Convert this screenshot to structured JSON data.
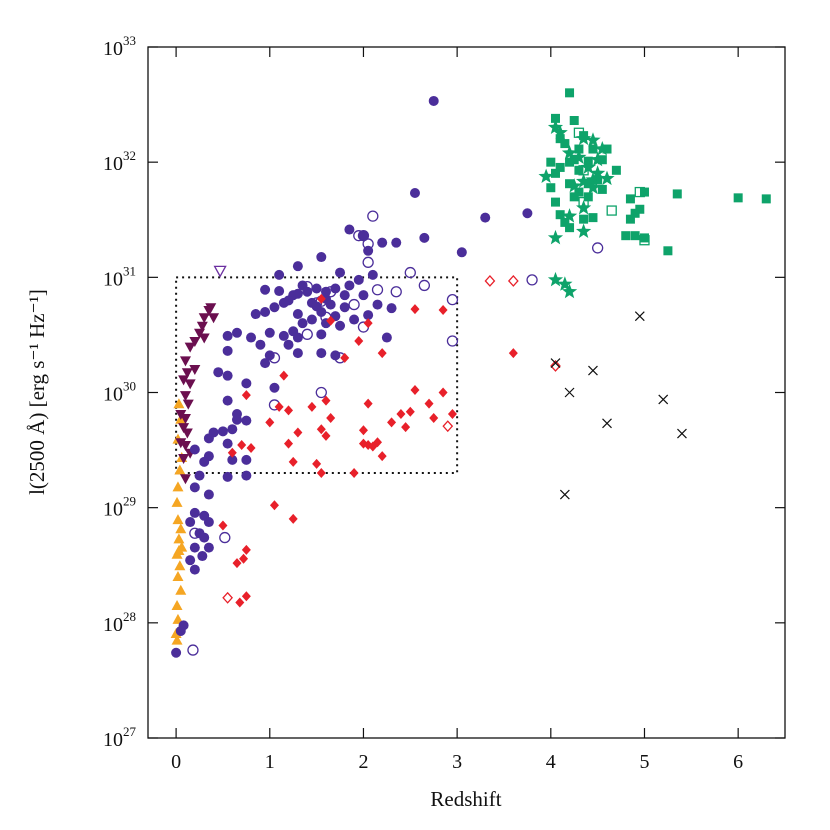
{
  "chart_data": {
    "type": "scatter",
    "xlabel": "Redshift",
    "ylabel": "l(2500 Å) [erg s⁻¹ Hz⁻¹]",
    "xlim": [
      -0.3,
      6.5
    ],
    "xticks": [
      0,
      1,
      2,
      3,
      4,
      5,
      6
    ],
    "ylim": [
      1e+27,
      1e+33
    ],
    "log_y": true,
    "yticks": [
      {
        "value": 1e+27,
        "label": "10",
        "sup": "27"
      },
      {
        "value": 1e+28,
        "label": "10",
        "sup": "28"
      },
      {
        "value": 1e+29,
        "label": "10",
        "sup": "29"
      },
      {
        "value": 1e+30,
        "label": "10",
        "sup": "30"
      },
      {
        "value": 1e+31,
        "label": "10",
        "sup": "31"
      },
      {
        "value": 1e+32,
        "label": "10",
        "sup": "32"
      },
      {
        "value": 1e+33,
        "label": "10",
        "sup": "33"
      }
    ],
    "box": {
      "x": [
        0,
        3
      ],
      "y": [
        2e+29,
        1e+31
      ]
    },
    "series": [
      {
        "marker": "triangle-up",
        "color": "#f5a623",
        "x": [
          0.03,
          0.05,
          0.02,
          0.06,
          0.04,
          0.02,
          0.01,
          0.02,
          0.05,
          0.03,
          0.06,
          0.01,
          0.04,
          0.02,
          0.05,
          0.01,
          0.02,
          0.0,
          0.01,
          0.03
        ],
        "values": [
          7.9e+29,
          5.8e+29,
          3.9e+29,
          2.7e+29,
          2.1e+29,
          1.5e+29,
          1.1e+29,
          7.8e+28,
          6.5e+28,
          5.3e+28,
          4.5e+28,
          3.9e+28,
          3.1e+28,
          2.5e+28,
          1.9e+28,
          1.4e+28,
          1.06e+28,
          8e+27,
          7e+27,
          4.2e+28
        ]
      },
      {
        "marker": "triangle-down",
        "color": "#6b0f4f",
        "x": [
          0.37,
          0.35,
          0.4,
          0.3,
          0.28,
          0.25,
          0.2,
          0.3,
          0.15,
          0.1,
          0.12,
          0.2,
          0.08,
          0.15,
          0.1,
          0.13,
          0.05,
          0.1,
          0.08,
          0.12,
          0.05,
          0.1,
          0.08,
          0.1,
          0.15
        ],
        "values": [
          5.5e+30,
          5.2e+30,
          4.5e+30,
          4.5e+30,
          3.8e+30,
          3.3e+30,
          2.8e+30,
          3e+30,
          2.5e+30,
          1.9e+30,
          1.5e+30,
          1.6e+30,
          1.3e+30,
          1.2e+30,
          9.5e+29,
          8e+29,
          6.5e+29,
          6e+29,
          5e+29,
          4.5e+29,
          3.7e+29,
          3.5e+29,
          2.7e+29,
          1.8e+29,
          3e+29
        ]
      },
      {
        "marker": "triangle-down-open",
        "color": "#6b2fa0",
        "x": [
          0.47
        ],
        "values": [
          1.15e+31
        ]
      },
      {
        "marker": "circle",
        "color": "#4b2e9a",
        "x": [
          2.75,
          2.55,
          3.3,
          3.75,
          3.05,
          2.65,
          2.35,
          1.85,
          2.0,
          2.2,
          2.05,
          1.55,
          1.3,
          1.1,
          1.75,
          2.1,
          1.95,
          1.85,
          1.7,
          1.35,
          1.5,
          1.25,
          1.6,
          1.4,
          0.95,
          1.1,
          1.3,
          1.8,
          2.0,
          1.6,
          1.45,
          1.2,
          1.15,
          1.5,
          1.65,
          1.8,
          2.15,
          2.3,
          1.05,
          0.95,
          0.85,
          1.3,
          1.55,
          1.7,
          2.05,
          1.9,
          1.45,
          1.35,
          1.6,
          1.75,
          1.25,
          1.0,
          0.65,
          0.55,
          0.8,
          1.15,
          1.3,
          1.55,
          2.25,
          0.9,
          1.2,
          0.55,
          1.0,
          1.3,
          0.95,
          1.55,
          1.7,
          0.45,
          0.55,
          0.75,
          1.05,
          0.55,
          0.65,
          0.65,
          0.75,
          0.6,
          0.5,
          0.4,
          0.35,
          0.55,
          0.2,
          0.35,
          0.3,
          0.6,
          0.75,
          0.25,
          0.2,
          0.55,
          0.75,
          0.35,
          0.2,
          0.3,
          0.35,
          0.15,
          0.25,
          0.3,
          0.35,
          0.2,
          0.15,
          0.28,
          0.2,
          0.05,
          0.08,
          0.0
        ],
        "values": [
          3.4e+32,
          5.4e+31,
          3.3e+31,
          3.6e+31,
          1.65e+31,
          2.2e+31,
          2e+31,
          2.6e+31,
          2.3e+31,
          2e+31,
          1.7e+31,
          1.5e+31,
          1.25e+31,
          1.05e+31,
          1.1e+31,
          1.05e+31,
          9.5e+30,
          8.5e+30,
          8e+30,
          8.5e+30,
          8e+30,
          7e+30,
          7.5e+30,
          7.5e+30,
          7.8e+30,
          7.6e+30,
          7.2e+30,
          7e+30,
          7e+30,
          6.5e+30,
          6e+30,
          6.3e+30,
          6e+30,
          5.6e+30,
          5.8e+30,
          5.5e+30,
          5.8e+30,
          5.4e+30,
          5.5e+30,
          5e+30,
          4.8e+30,
          4.8e+30,
          5e+30,
          4.6e+30,
          4.7e+30,
          4.3e+30,
          4.3e+30,
          4e+30,
          4e+30,
          3.8e+30,
          3.4e+30,
          3.3e+30,
          3.3e+30,
          3.1e+30,
          3e+30,
          3.1e+30,
          3e+30,
          3.2e+30,
          3e+30,
          2.6e+30,
          2.6e+30,
          2.3e+30,
          2.1e+30,
          2.2e+30,
          1.8e+30,
          2.2e+30,
          2.1e+30,
          1.5e+30,
          1.4e+30,
          1.2e+30,
          1.1e+30,
          8.5e+29,
          6.5e+29,
          5.8e+29,
          5.7e+29,
          4.8e+29,
          4.6e+29,
          4.5e+29,
          4e+29,
          3.6e+29,
          3.2e+29,
          2.8e+29,
          2.5e+29,
          2.6e+29,
          2.6e+29,
          1.9e+29,
          1.5e+29,
          1.85e+29,
          1.9e+29,
          1.3e+29,
          9e+28,
          8.5e+28,
          7.5e+28,
          7.5e+28,
          6e+28,
          5.5e+28,
          4.5e+28,
          4.5e+28,
          3.5e+28,
          3.8e+28,
          2.9e+28,
          8.5e+27,
          9.5e+27,
          5.5e+27
        ]
      },
      {
        "marker": "circle-open",
        "color": "#4b2e9a",
        "x": [
          2.1,
          1.95,
          2.0,
          2.05,
          2.05,
          2.5,
          1.4,
          1.65,
          2.15,
          2.35,
          2.95,
          2.65,
          1.5,
          1.55,
          1.9,
          1.6,
          2.0,
          1.4,
          2.95,
          1.75,
          1.05,
          1.55,
          1.05,
          3.8,
          4.5,
          0.52,
          0.18,
          0.2
        ],
        "values": [
          3.4e+31,
          2.3e+31,
          2.3e+31,
          1.95e+31,
          1.35e+31,
          1.1e+31,
          8.3e+30,
          7.5e+30,
          7.8e+30,
          7.5e+30,
          6.4e+30,
          8.5e+30,
          6e+30,
          6.2e+30,
          5.8e+30,
          4.5e+30,
          3.7e+30,
          3.2e+30,
          2.8e+30,
          2e+30,
          2e+30,
          1e+30,
          7.8e+29,
          9.5e+30,
          1.8e+31,
          5.5e+28,
          5.8e+27,
          6e+28
        ]
      },
      {
        "marker": "diamond",
        "color": "#e8202a",
        "x": [
          1.55,
          2.55,
          2.85,
          2.05,
          1.65,
          1.95,
          2.2,
          1.8,
          3.6,
          1.15,
          0.75,
          1.1,
          2.55,
          2.85,
          1.6,
          2.05,
          1.45,
          1.2,
          2.7,
          2.4,
          2.5,
          2.75,
          2.95,
          1.65,
          2.3,
          1.0,
          1.55,
          2.45,
          2.0,
          1.3,
          1.6,
          1.2,
          2.0,
          2.15,
          2.05,
          2.1,
          0.8,
          0.7,
          0.6,
          1.25,
          1.5,
          1.55,
          2.2,
          1.05,
          1.25,
          0.5,
          0.75,
          0.72,
          0.65,
          0.75,
          0.68,
          1.9
        ],
        "values": [
          6.5e+30,
          5.3e+30,
          5.2e+30,
          4e+30,
          4.2e+30,
          2.8e+30,
          2.2e+30,
          2e+30,
          2.2e+30,
          1.4e+30,
          9.5e+29,
          7.5e+29,
          1.05e+30,
          1e+30,
          8.5e+29,
          8e+29,
          7.5e+29,
          7e+29,
          8e+29,
          6.5e+29,
          6.8e+29,
          6e+29,
          6.5e+29,
          6e+29,
          5.5e+29,
          5.5e+29,
          4.8e+29,
          5e+29,
          4.7e+29,
          4.5e+29,
          4.2e+29,
          3.6e+29,
          3.6e+29,
          3.7e+29,
          3.5e+29,
          3.4e+29,
          3.3e+29,
          3.5e+29,
          3e+29,
          2.5e+29,
          2.4e+29,
          2e+29,
          2.8e+29,
          1.05e+29,
          8e+28,
          7e+28,
          4.3e+28,
          3.6e+28,
          3.3e+28,
          1.7e+28,
          1.5e+28,
          2e+29
        ]
      },
      {
        "marker": "diamond-open",
        "color": "#e8202a",
        "x": [
          3.35,
          3.6,
          4.05,
          2.9,
          0.55
        ],
        "values": [
          9.3e+30,
          9.3e+30,
          1.7e+30,
          5.1e+29,
          1.65e+28
        ]
      },
      {
        "marker": "square",
        "color": "#0ea36a",
        "x": [
          4.2,
          4.05,
          4.25,
          4.1,
          4.15,
          4.35,
          4.3,
          4.45,
          4.6,
          4.0,
          4.2,
          4.25,
          4.4,
          4.55,
          4.7,
          4.05,
          4.3,
          4.5,
          4.2,
          4.4,
          4.0,
          4.3,
          4.55,
          4.25,
          4.4,
          4.1,
          4.15,
          4.35,
          4.45,
          4.85,
          5.0,
          4.9,
          4.95,
          4.85,
          4.8,
          4.9,
          5.0,
          5.25,
          5.35,
          6.0,
          6.3,
          4.2,
          4.05,
          4.1
        ],
        "values": [
          4e+32,
          2.4e+32,
          2.3e+32,
          1.6e+32,
          1.45e+32,
          1.7e+32,
          1.3e+32,
          1.3e+32,
          1.3e+32,
          1e+32,
          1e+32,
          1.05e+32,
          1.02e+32,
          1.05e+32,
          8.5e+31,
          8e+31,
          8.5e+31,
          7e+31,
          6.5e+31,
          6.5e+31,
          6e+31,
          5.5e+31,
          5.8e+31,
          5e+31,
          5e+31,
          3.5e+31,
          3e+31,
          3.2e+31,
          3.3e+31,
          4.8e+31,
          5.5e+31,
          3.6e+31,
          3.9e+31,
          3.2e+31,
          2.3e+31,
          2.3e+31,
          2.2e+31,
          1.7e+31,
          5.3e+31,
          4.9e+31,
          4.8e+31,
          2.7e+31,
          4.5e+31,
          9e+31
        ]
      },
      {
        "marker": "square-open",
        "color": "#0ea36a",
        "x": [
          4.35,
          4.65,
          4.95,
          5.0,
          4.3,
          4.35
        ],
        "values": [
          4.5e+31,
          3.8e+31,
          5.5e+31,
          2.1e+31,
          1.8e+32,
          8.5e+31
        ]
      },
      {
        "marker": "star",
        "color": "#0ea36a",
        "x": [
          4.05,
          4.1,
          4.35,
          4.45,
          4.55,
          4.2,
          4.3,
          4.5,
          4.4,
          4.5,
          4.45,
          4.6,
          4.35,
          3.95,
          4.25,
          4.45,
          4.35,
          4.2,
          4.35,
          4.05,
          4.05,
          4.2,
          4.15
        ],
        "values": [
          2e+32,
          1.8e+32,
          1.6e+32,
          1.55e+32,
          1.3e+32,
          1.2e+32,
          1.1e+32,
          1.05e+32,
          9e+31,
          8e+31,
          7e+31,
          7.2e+31,
          6.8e+31,
          7.5e+31,
          6.2e+31,
          6e+31,
          4e+31,
          3.4e+31,
          2.5e+31,
          2.2e+31,
          9.5e+30,
          7.5e+30,
          8.7e+30
        ]
      },
      {
        "marker": "cross",
        "color": "#111111",
        "x": [
          4.95,
          4.05,
          4.45,
          4.2,
          5.2,
          4.6,
          5.4,
          4.15
        ],
        "values": [
          4.6e+30,
          1.8e+30,
          1.55e+30,
          1e+30,
          8.7e+29,
          5.4e+29,
          4.4e+29,
          1.3e+29
        ]
      }
    ]
  }
}
